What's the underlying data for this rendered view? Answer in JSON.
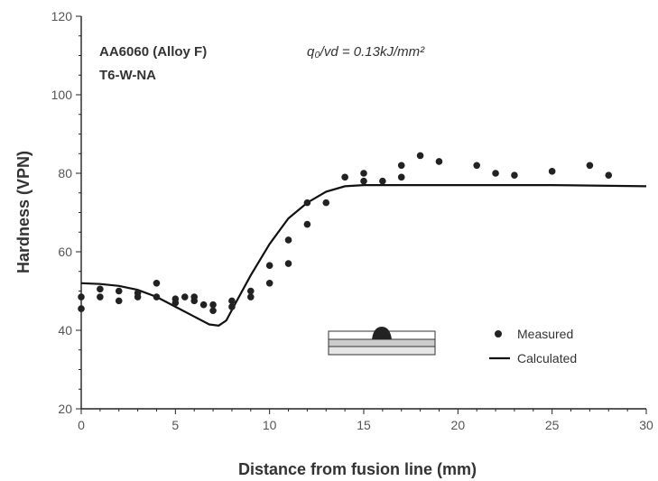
{
  "chart_data": {
    "type": "scatter",
    "xlabel": "Distance from fusion line (mm)",
    "ylabel": "Hardness (VPN)",
    "xlim": [
      0,
      30
    ],
    "ylim": [
      20,
      120
    ],
    "xticks": [
      0,
      5,
      10,
      15,
      20,
      25,
      30
    ],
    "yticks": [
      20,
      40,
      60,
      80,
      100,
      120
    ],
    "grid": false,
    "legend_position": "bottom-right",
    "annotations": {
      "alloy": "AA6060 (Alloy F)",
      "condition": "T6-W-NA",
      "heat_input": "q₀/vd = 0.13kJ/mm²"
    },
    "series": [
      {
        "name": "Measured",
        "kind": "scatter",
        "points": [
          [
            0,
            48.5
          ],
          [
            0,
            45.5
          ],
          [
            1,
            50.5
          ],
          [
            1,
            48.5
          ],
          [
            2,
            50
          ],
          [
            2,
            47.5
          ],
          [
            3,
            49.5
          ],
          [
            3,
            48.5
          ],
          [
            4,
            52
          ],
          [
            4,
            48.5
          ],
          [
            5,
            48
          ],
          [
            5,
            47
          ],
          [
            5.5,
            48.5
          ],
          [
            6,
            48.5
          ],
          [
            6,
            47.5
          ],
          [
            6.5,
            46.5
          ],
          [
            7,
            46.5
          ],
          [
            7,
            45
          ],
          [
            8,
            47.5
          ],
          [
            8,
            46
          ],
          [
            9,
            50
          ],
          [
            9,
            48.5
          ],
          [
            10,
            56.5
          ],
          [
            10,
            52
          ],
          [
            11,
            63
          ],
          [
            11,
            57
          ],
          [
            12,
            72.5
          ],
          [
            12,
            67
          ],
          [
            13,
            72.5
          ],
          [
            14,
            79
          ],
          [
            15,
            80
          ],
          [
            15,
            78
          ],
          [
            16,
            78
          ],
          [
            17,
            82
          ],
          [
            17,
            79
          ],
          [
            18,
            84.5
          ],
          [
            19,
            83
          ],
          [
            21,
            82
          ],
          [
            22,
            80
          ],
          [
            23,
            79.5
          ],
          [
            25,
            80.5
          ],
          [
            27,
            82
          ],
          [
            28,
            79.5
          ]
        ]
      },
      {
        "name": "Calculated",
        "kind": "line",
        "points": [
          [
            0,
            52
          ],
          [
            1,
            51.8
          ],
          [
            2,
            51.3
          ],
          [
            3,
            50.3
          ],
          [
            4,
            48.5
          ],
          [
            5,
            46
          ],
          [
            6,
            43.5
          ],
          [
            6.8,
            41.5
          ],
          [
            7.3,
            41.2
          ],
          [
            7.7,
            42.5
          ],
          [
            8.2,
            47
          ],
          [
            9,
            54
          ],
          [
            10,
            62
          ],
          [
            11,
            68.5
          ],
          [
            12,
            72.5
          ],
          [
            13,
            75.3
          ],
          [
            14,
            76.7
          ],
          [
            15,
            77
          ],
          [
            20,
            77
          ],
          [
            25,
            77
          ],
          [
            30,
            76.7
          ]
        ]
      }
    ]
  }
}
